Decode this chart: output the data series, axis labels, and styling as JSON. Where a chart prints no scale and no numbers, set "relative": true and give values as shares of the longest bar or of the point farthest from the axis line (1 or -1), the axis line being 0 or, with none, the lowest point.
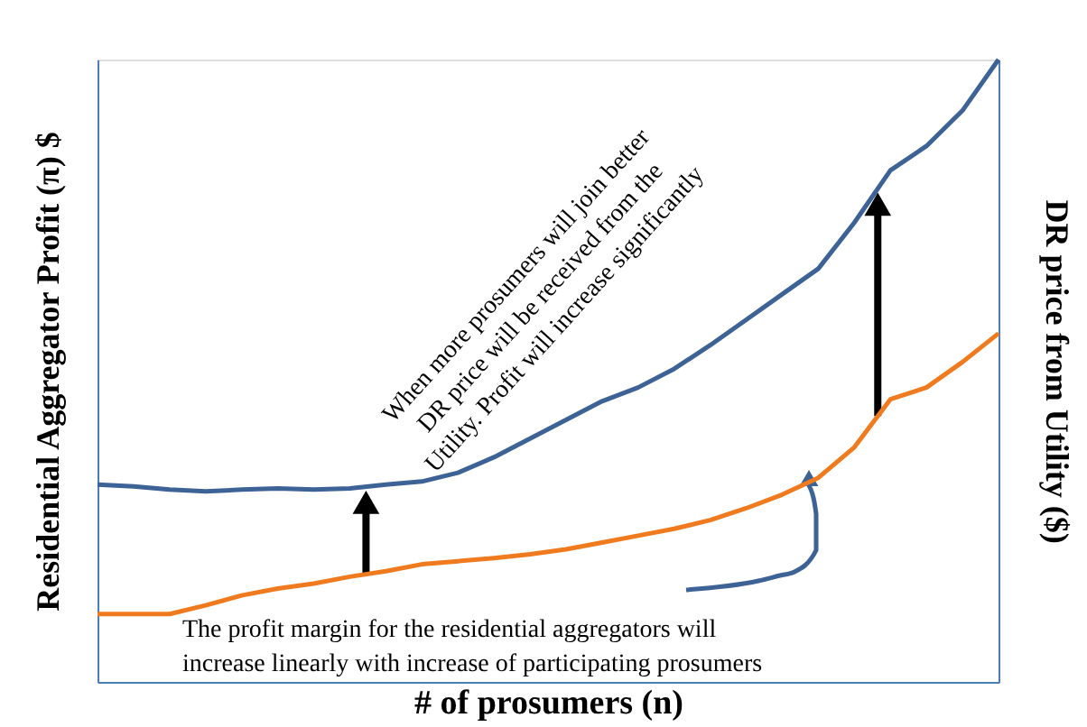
{
  "chart_data": {
    "type": "line",
    "relative": true,
    "xlabel": "# of prosumers (n)",
    "ylabel": "Residential Aggregator Profit (π) $",
    "y2label": "DR price from Utility ($)",
    "categories": [
      null,
      null,
      null,
      null,
      null,
      null,
      null,
      null,
      null,
      null,
      null,
      null,
      null,
      null,
      null,
      null,
      null,
      null,
      null,
      null,
      null,
      null,
      null,
      null,
      null,
      null
    ],
    "series": [
      {
        "color": "#3d6396",
        "values": [
          0.317,
          0.314,
          0.309,
          0.306,
          0.309,
          0.311,
          0.309,
          0.311,
          0.317,
          0.322,
          0.336,
          0.361,
          0.391,
          0.421,
          0.451,
          0.473,
          0.503,
          0.541,
          0.582,
          0.623,
          0.664,
          0.738,
          0.822,
          0.861,
          0.918,
          1
        ]
      },
      {
        "color": "#f07b1f",
        "values": [
          0.109,
          0.109,
          0.109,
          0.123,
          0.139,
          0.15,
          0.158,
          0.169,
          0.178,
          0.189,
          0.194,
          0.199,
          0.205,
          0.213,
          0.224,
          0.235,
          0.246,
          0.26,
          0.279,
          0.301,
          0.328,
          0.377,
          0.454,
          0.473,
          0.514,
          0.56
        ]
      }
    ],
    "annotations": [
      "When more prosumers will join better DR price will be received from the Utility. Profit will increase significantly",
      "The profit margin for the residential aggregators will increase linearly with increase of participating prosumers"
    ],
    "grid": false,
    "line_style": "solid"
  }
}
